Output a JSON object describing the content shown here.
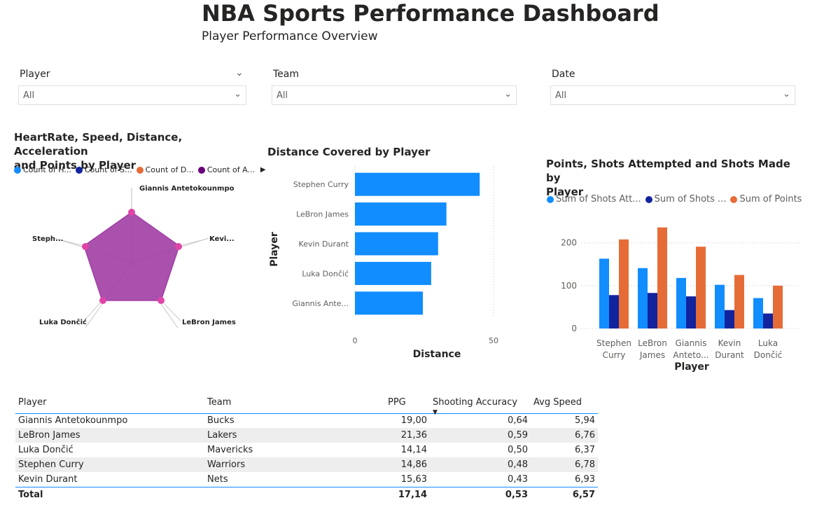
{
  "header": {
    "title": "NBA Sports Performance Dashboard",
    "subtitle": "Player Performance Overview"
  },
  "slicers": [
    {
      "label": "Player",
      "value": "All"
    },
    {
      "label": "Team",
      "value": "All"
    },
    {
      "label": "Date",
      "value": "All"
    }
  ],
  "radar": {
    "title_line1": "HeartRate, Speed, Distance, Acceleration",
    "title_line2": "and Points by Player",
    "legend": [
      {
        "label": "Count of H...",
        "color": "#118dff"
      },
      {
        "label": "Count of S...",
        "color": "#12239e"
      },
      {
        "label": "Count of D...",
        "color": "#e66c37"
      },
      {
        "label": "Count of A...",
        "color": "#6b007b"
      }
    ],
    "fill_color": "#a13ea5",
    "point_color": "#e044a7",
    "labels": [
      "Giannis Antetokounmpo",
      "Kevi...",
      "LeBron James",
      "Luka Dončić",
      "Steph..."
    ]
  },
  "chart_data": [
    {
      "type": "bar",
      "orientation": "horizontal",
      "title": "Distance Covered by Player",
      "xlabel": "Distance",
      "ylabel": "Player",
      "categories": [
        "Stephen Curry",
        "LeBron James",
        "Kevin Durant",
        "Luka Dončić",
        "Giannis Ante..."
      ],
      "values": [
        45,
        33,
        30,
        27.5,
        24.5
      ],
      "xlim": [
        0,
        50
      ],
      "xticks": [
        "0",
        "50"
      ],
      "color": "#118dff"
    },
    {
      "type": "bar",
      "title_line1": "Points, Shots Attempted and Shots Made by",
      "title_line2": "Player",
      "xlabel": "Player",
      "categories": [
        [
          "Stephen",
          "Curry"
        ],
        [
          "LeBron",
          "James"
        ],
        [
          "Giannis",
          "Anteto..."
        ],
        [
          "Kevin",
          "Durant"
        ],
        [
          "Luka",
          "Dončić"
        ]
      ],
      "series": [
        {
          "name": "Sum of Shots Att...",
          "color": "#118dff",
          "values": [
            163,
            141,
            118,
            102,
            71
          ]
        },
        {
          "name": "Sum of Shots ...",
          "color": "#12239e",
          "values": [
            78,
            83,
            75,
            43,
            35
          ]
        },
        {
          "name": "Sum of Points",
          "color": "#e66c37",
          "values": [
            208,
            236,
            191,
            125,
            100
          ]
        }
      ],
      "ylim": [
        0,
        260
      ],
      "yticks": [
        "0",
        "100",
        "200"
      ]
    }
  ],
  "table": {
    "columns": [
      "Player",
      "Team",
      "PPG",
      "Shooting Accuracy",
      "Avg Speed"
    ],
    "rows": [
      [
        "Giannis Antetokounmpo",
        "Bucks",
        "19,00",
        "0,64",
        "5,94"
      ],
      [
        "LeBron James",
        "Lakers",
        "21,36",
        "0,59",
        "6,76"
      ],
      [
        "Luka Dončić",
        "Mavericks",
        "14,14",
        "0,50",
        "6,37"
      ],
      [
        "Stephen Curry",
        "Warriors",
        "14,86",
        "0,48",
        "6,78"
      ],
      [
        "Kevin Durant",
        "Nets",
        "15,63",
        "0,43",
        "6,93"
      ]
    ],
    "total": [
      "Total",
      "",
      "17,14",
      "0,53",
      "6,57"
    ]
  }
}
